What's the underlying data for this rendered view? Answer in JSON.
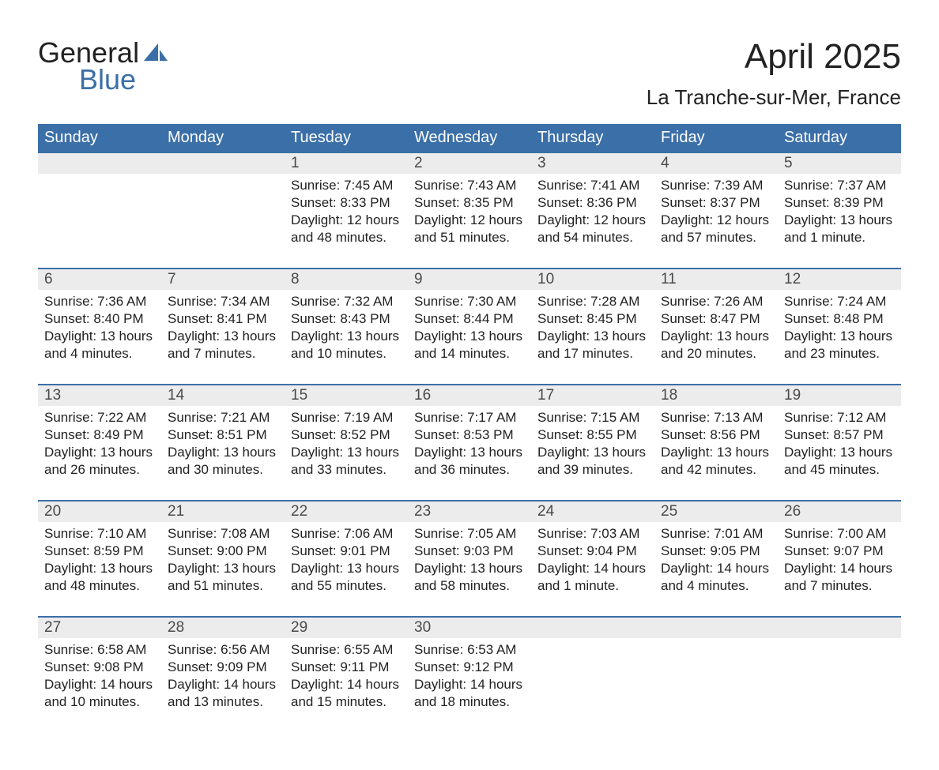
{
  "logo": {
    "line1": "General",
    "line2": "Blue",
    "text_color": "#222222",
    "accent_color": "#3b6fa8"
  },
  "title": "April 2025",
  "subtitle": "La Tranche-sur-Mer, France",
  "colors": {
    "header_bg": "#3b6fa8",
    "header_text": "#ffffff",
    "date_row_bg": "#ececec",
    "date_text": "#4a4a4a",
    "body_text": "#222222",
    "week_border": "#3b6fa8",
    "page_bg": "#ffffff"
  },
  "typography": {
    "title_fontsize": 44,
    "subtitle_fontsize": 26,
    "dow_fontsize": 20,
    "date_fontsize": 19,
    "cell_fontsize": 17,
    "logo_fontsize": 36
  },
  "day_headers": [
    "Sunday",
    "Monday",
    "Tuesday",
    "Wednesday",
    "Thursday",
    "Friday",
    "Saturday"
  ],
  "weeks": [
    {
      "dates": [
        "",
        "",
        "1",
        "2",
        "3",
        "4",
        "5"
      ],
      "cells": [
        null,
        null,
        {
          "sunrise": "Sunrise: 7:45 AM",
          "sunset": "Sunset: 8:33 PM",
          "daylight": "Daylight: 12 hours and 48 minutes."
        },
        {
          "sunrise": "Sunrise: 7:43 AM",
          "sunset": "Sunset: 8:35 PM",
          "daylight": "Daylight: 12 hours and 51 minutes."
        },
        {
          "sunrise": "Sunrise: 7:41 AM",
          "sunset": "Sunset: 8:36 PM",
          "daylight": "Daylight: 12 hours and 54 minutes."
        },
        {
          "sunrise": "Sunrise: 7:39 AM",
          "sunset": "Sunset: 8:37 PM",
          "daylight": "Daylight: 12 hours and 57 minutes."
        },
        {
          "sunrise": "Sunrise: 7:37 AM",
          "sunset": "Sunset: 8:39 PM",
          "daylight": "Daylight: 13 hours and 1 minute."
        }
      ]
    },
    {
      "dates": [
        "6",
        "7",
        "8",
        "9",
        "10",
        "11",
        "12"
      ],
      "cells": [
        {
          "sunrise": "Sunrise: 7:36 AM",
          "sunset": "Sunset: 8:40 PM",
          "daylight": "Daylight: 13 hours and 4 minutes."
        },
        {
          "sunrise": "Sunrise: 7:34 AM",
          "sunset": "Sunset: 8:41 PM",
          "daylight": "Daylight: 13 hours and 7 minutes."
        },
        {
          "sunrise": "Sunrise: 7:32 AM",
          "sunset": "Sunset: 8:43 PM",
          "daylight": "Daylight: 13 hours and 10 minutes."
        },
        {
          "sunrise": "Sunrise: 7:30 AM",
          "sunset": "Sunset: 8:44 PM",
          "daylight": "Daylight: 13 hours and 14 minutes."
        },
        {
          "sunrise": "Sunrise: 7:28 AM",
          "sunset": "Sunset: 8:45 PM",
          "daylight": "Daylight: 13 hours and 17 minutes."
        },
        {
          "sunrise": "Sunrise: 7:26 AM",
          "sunset": "Sunset: 8:47 PM",
          "daylight": "Daylight: 13 hours and 20 minutes."
        },
        {
          "sunrise": "Sunrise: 7:24 AM",
          "sunset": "Sunset: 8:48 PM",
          "daylight": "Daylight: 13 hours and 23 minutes."
        }
      ]
    },
    {
      "dates": [
        "13",
        "14",
        "15",
        "16",
        "17",
        "18",
        "19"
      ],
      "cells": [
        {
          "sunrise": "Sunrise: 7:22 AM",
          "sunset": "Sunset: 8:49 PM",
          "daylight": "Daylight: 13 hours and 26 minutes."
        },
        {
          "sunrise": "Sunrise: 7:21 AM",
          "sunset": "Sunset: 8:51 PM",
          "daylight": "Daylight: 13 hours and 30 minutes."
        },
        {
          "sunrise": "Sunrise: 7:19 AM",
          "sunset": "Sunset: 8:52 PM",
          "daylight": "Daylight: 13 hours and 33 minutes."
        },
        {
          "sunrise": "Sunrise: 7:17 AM",
          "sunset": "Sunset: 8:53 PM",
          "daylight": "Daylight: 13 hours and 36 minutes."
        },
        {
          "sunrise": "Sunrise: 7:15 AM",
          "sunset": "Sunset: 8:55 PM",
          "daylight": "Daylight: 13 hours and 39 minutes."
        },
        {
          "sunrise": "Sunrise: 7:13 AM",
          "sunset": "Sunset: 8:56 PM",
          "daylight": "Daylight: 13 hours and 42 minutes."
        },
        {
          "sunrise": "Sunrise: 7:12 AM",
          "sunset": "Sunset: 8:57 PM",
          "daylight": "Daylight: 13 hours and 45 minutes."
        }
      ]
    },
    {
      "dates": [
        "20",
        "21",
        "22",
        "23",
        "24",
        "25",
        "26"
      ],
      "cells": [
        {
          "sunrise": "Sunrise: 7:10 AM",
          "sunset": "Sunset: 8:59 PM",
          "daylight": "Daylight: 13 hours and 48 minutes."
        },
        {
          "sunrise": "Sunrise: 7:08 AM",
          "sunset": "Sunset: 9:00 PM",
          "daylight": "Daylight: 13 hours and 51 minutes."
        },
        {
          "sunrise": "Sunrise: 7:06 AM",
          "sunset": "Sunset: 9:01 PM",
          "daylight": "Daylight: 13 hours and 55 minutes."
        },
        {
          "sunrise": "Sunrise: 7:05 AM",
          "sunset": "Sunset: 9:03 PM",
          "daylight": "Daylight: 13 hours and 58 minutes."
        },
        {
          "sunrise": "Sunrise: 7:03 AM",
          "sunset": "Sunset: 9:04 PM",
          "daylight": "Daylight: 14 hours and 1 minute."
        },
        {
          "sunrise": "Sunrise: 7:01 AM",
          "sunset": "Sunset: 9:05 PM",
          "daylight": "Daylight: 14 hours and 4 minutes."
        },
        {
          "sunrise": "Sunrise: 7:00 AM",
          "sunset": "Sunset: 9:07 PM",
          "daylight": "Daylight: 14 hours and 7 minutes."
        }
      ]
    },
    {
      "dates": [
        "27",
        "28",
        "29",
        "30",
        "",
        "",
        ""
      ],
      "cells": [
        {
          "sunrise": "Sunrise: 6:58 AM",
          "sunset": "Sunset: 9:08 PM",
          "daylight": "Daylight: 14 hours and 10 minutes."
        },
        {
          "sunrise": "Sunrise: 6:56 AM",
          "sunset": "Sunset: 9:09 PM",
          "daylight": "Daylight: 14 hours and 13 minutes."
        },
        {
          "sunrise": "Sunrise: 6:55 AM",
          "sunset": "Sunset: 9:11 PM",
          "daylight": "Daylight: 14 hours and 15 minutes."
        },
        {
          "sunrise": "Sunrise: 6:53 AM",
          "sunset": "Sunset: 9:12 PM",
          "daylight": "Daylight: 14 hours and 18 minutes."
        },
        null,
        null,
        null
      ]
    }
  ]
}
